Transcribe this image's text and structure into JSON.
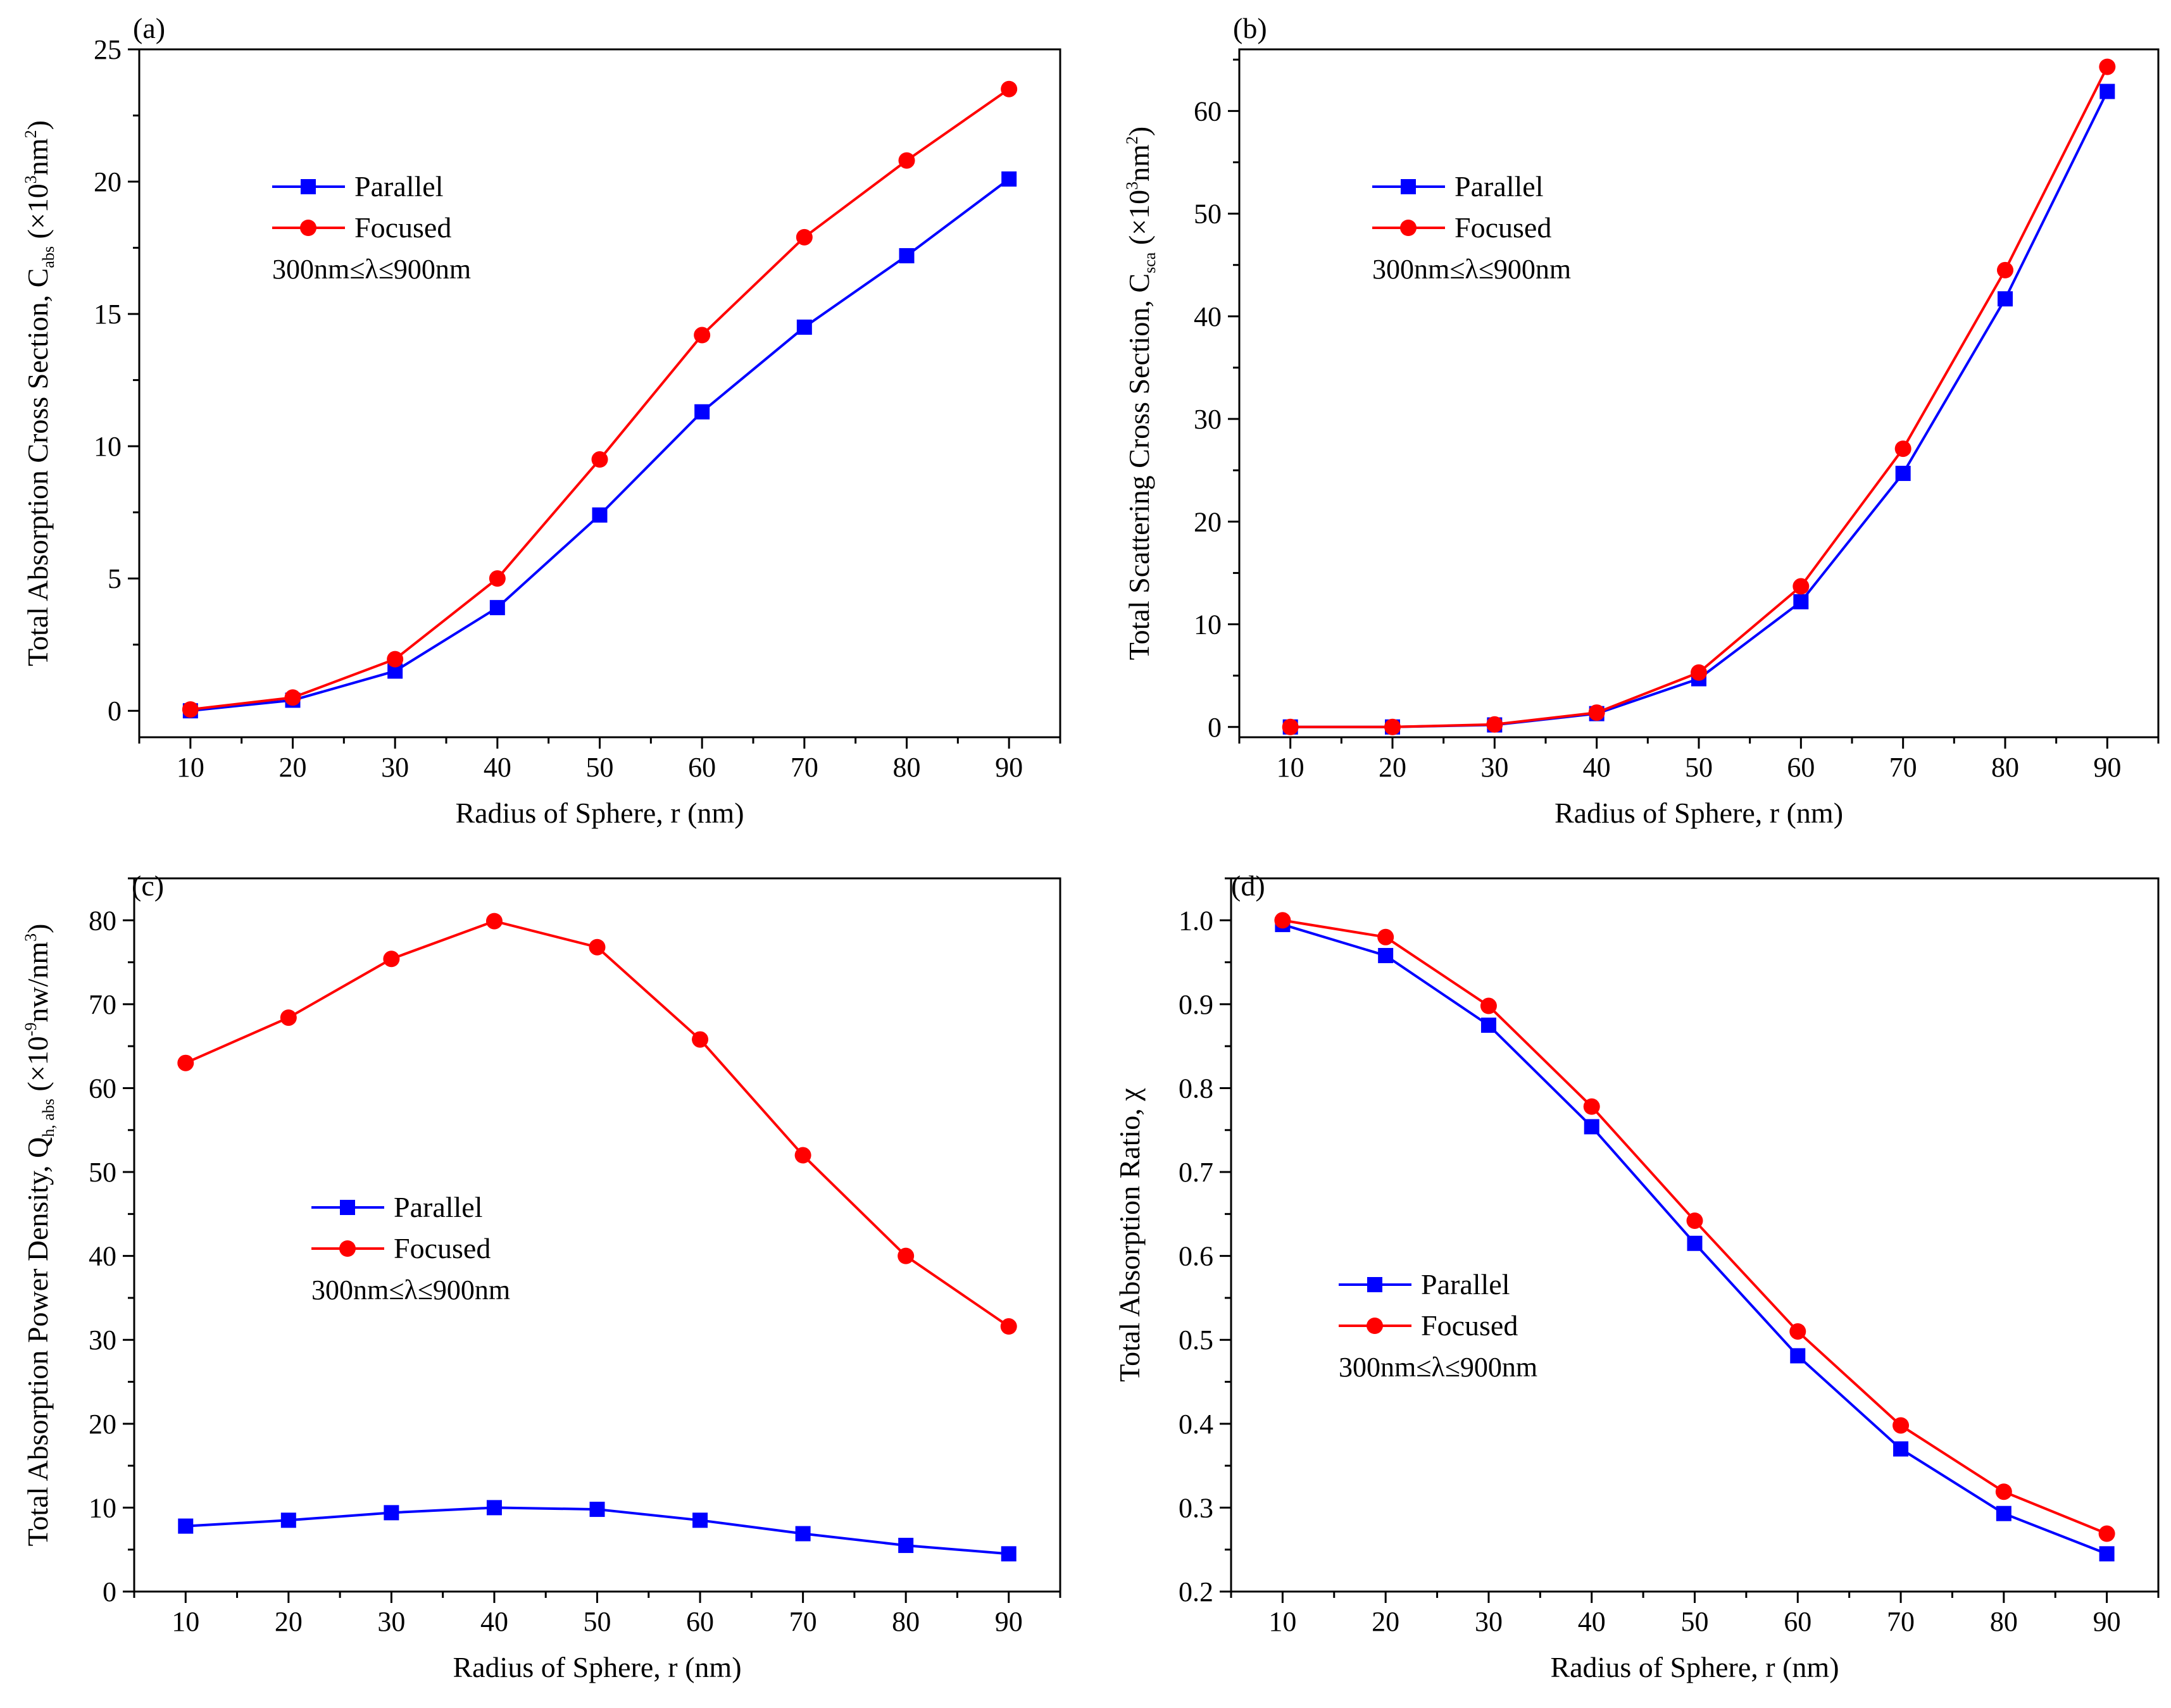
{
  "chart_data": [
    {
      "type": "line",
      "panel_label": "(a)",
      "xlabel": "Radius of Sphere, r (nm)",
      "ylabel": {
        "main": "Total Absorption Cross Section, C",
        "sub": "abs",
        "unit_open": " (×10",
        "sup1": "3",
        "unit_mid": "nm",
        "sup2": "2",
        "unit_close": ")"
      },
      "x": [
        10,
        20,
        30,
        40,
        50,
        60,
        70,
        80,
        90
      ],
      "xlim": [
        5,
        95
      ],
      "xticks": [
        10,
        20,
        30,
        40,
        50,
        60,
        70,
        80,
        90
      ],
      "ylim": [
        -1,
        25
      ],
      "yticks": [
        0,
        5,
        10,
        15,
        20,
        25
      ],
      "ytick_labels": [
        "0",
        "5",
        "10",
        "15",
        "20",
        "25"
      ],
      "legend_position": "upper-left",
      "note": "300nm≤λ≤900nm",
      "series": [
        {
          "name": "Parallel",
          "color": "#0000ff",
          "marker": "square",
          "values": [
            0.0,
            0.4,
            1.5,
            3.9,
            7.4,
            11.3,
            14.5,
            17.2,
            20.1
          ]
        },
        {
          "name": "Focused",
          "color": "#ff0000",
          "marker": "circle",
          "values": [
            0.05,
            0.5,
            1.95,
            5.0,
            9.5,
            14.2,
            17.9,
            20.8,
            23.5
          ]
        }
      ]
    },
    {
      "type": "line",
      "panel_label": "(b)",
      "xlabel": "Radius of Sphere, r (nm)",
      "ylabel": {
        "main": "Total Scattering Cross Section, C",
        "sub": "sca",
        "unit_open": " (×10",
        "sup1": "3",
        "unit_mid": "nm",
        "sup2": "2",
        "unit_close": ")"
      },
      "x": [
        10,
        20,
        30,
        40,
        50,
        60,
        70,
        80,
        90
      ],
      "xlim": [
        5,
        95
      ],
      "xticks": [
        10,
        20,
        30,
        40,
        50,
        60,
        70,
        80,
        90
      ],
      "ylim": [
        -1,
        66
      ],
      "yticks": [
        0,
        10,
        20,
        30,
        40,
        50,
        60
      ],
      "ytick_labels": [
        "0",
        "10",
        "20",
        "30",
        "40",
        "50",
        "60"
      ],
      "legend_position": "upper-left",
      "note": "300nm≤λ≤900nm",
      "series": [
        {
          "name": "Parallel",
          "color": "#0000ff",
          "marker": "square",
          "values": [
            0.0,
            0.0,
            0.2,
            1.3,
            4.7,
            12.2,
            24.7,
            41.7,
            61.9
          ]
        },
        {
          "name": "Focused",
          "color": "#ff0000",
          "marker": "circle",
          "values": [
            0.0,
            0.0,
            0.25,
            1.4,
            5.3,
            13.7,
            27.1,
            44.5,
            64.3
          ]
        }
      ]
    },
    {
      "type": "line",
      "panel_label": "(c)",
      "xlabel": "Radius of Sphere, r (nm)",
      "ylabel": {
        "main": "Total Absorption Power Density, Q",
        "sub": "h, abs",
        "unit_open": " (×10",
        "sup1": "-9",
        "unit_mid": "nw/nm",
        "sup2": "3",
        "unit_close": ")"
      },
      "x": [
        10,
        20,
        30,
        40,
        50,
        60,
        70,
        80,
        90
      ],
      "xlim": [
        5,
        95
      ],
      "xticks": [
        10,
        20,
        30,
        40,
        50,
        60,
        70,
        80,
        90
      ],
      "ylim": [
        0,
        85
      ],
      "yticks": [
        0,
        10,
        20,
        30,
        40,
        50,
        60,
        70,
        80
      ],
      "ytick_labels": [
        "0",
        "10",
        "20",
        "30",
        "40",
        "50",
        "60",
        "70",
        "80"
      ],
      "legend_position": "center-left",
      "note": "300nm≤λ≤900nm",
      "series": [
        {
          "name": "Parallel",
          "color": "#0000ff",
          "marker": "square",
          "values": [
            7.8,
            8.5,
            9.4,
            10.0,
            9.8,
            8.5,
            6.9,
            5.5,
            4.5
          ]
        },
        {
          "name": "Focused",
          "color": "#ff0000",
          "marker": "circle",
          "values": [
            63.0,
            68.4,
            75.4,
            79.9,
            76.8,
            65.8,
            52.0,
            40.0,
            31.6
          ]
        }
      ]
    },
    {
      "type": "line",
      "panel_label": "(d)",
      "xlabel": "Radius of Sphere, r (nm)",
      "ylabel": {
        "main": "Total Absorption Ratio, χ"
      },
      "x": [
        10,
        20,
        30,
        40,
        50,
        60,
        70,
        80,
        90
      ],
      "xlim": [
        5,
        95
      ],
      "xticks": [
        10,
        20,
        30,
        40,
        50,
        60,
        70,
        80,
        90
      ],
      "ylim": [
        0.2,
        1.05
      ],
      "yticks": [
        0.2,
        0.3,
        0.4,
        0.5,
        0.6,
        0.7,
        0.8,
        0.9,
        1.0
      ],
      "ytick_labels": [
        "0.2",
        "0.3",
        "0.4",
        "0.5",
        "0.6",
        "0.7",
        "0.8",
        "0.9",
        "1.0"
      ],
      "legend_position": "lower-left",
      "note": "300nm≤λ≤900nm",
      "series": [
        {
          "name": "Parallel",
          "color": "#0000ff",
          "marker": "square",
          "values": [
            0.995,
            0.958,
            0.875,
            0.754,
            0.615,
            0.481,
            0.37,
            0.293,
            0.245
          ]
        },
        {
          "name": "Focused",
          "color": "#ff0000",
          "marker": "circle",
          "values": [
            1.0,
            0.98,
            0.898,
            0.778,
            0.642,
            0.51,
            0.398,
            0.319,
            0.269
          ]
        }
      ]
    }
  ]
}
